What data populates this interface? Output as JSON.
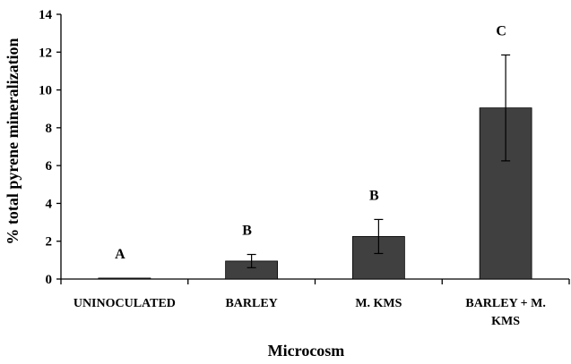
{
  "chart_data": {
    "type": "bar",
    "title": "",
    "xlabel": "Microcosm",
    "ylabel": "% total pyrene mineralization",
    "ylim": [
      0,
      14
    ],
    "yticks": [
      "0",
      "2",
      "4",
      "6",
      "8",
      "10",
      "12",
      "14"
    ],
    "grid": false,
    "legend": "none",
    "bar_color": "#404040",
    "categories": [
      [
        "UNINOCULATED"
      ],
      [
        "BARLEY"
      ],
      [
        "M. KMS"
      ],
      [
        "BARLEY + M.",
        "KMS"
      ]
    ],
    "values": [
      0.05,
      0.95,
      2.25,
      9.05
    ],
    "error": [
      0,
      0.35,
      0.9,
      2.8
    ],
    "significance": [
      "A",
      "B",
      "B",
      "C"
    ]
  }
}
